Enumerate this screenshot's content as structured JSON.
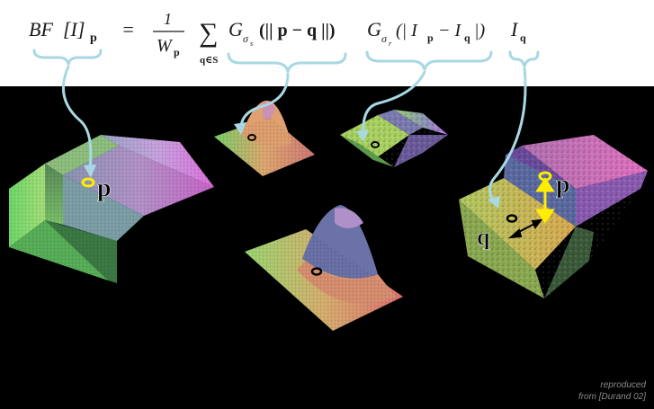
{
  "equation": {
    "lhs_main": "BF",
    "lhs_bracket": "[I]",
    "lhs_sub": "p",
    "equals": "=",
    "frac_num": "1",
    "frac_den": "W",
    "frac_den_sub": "p",
    "sum_symbol": "∑",
    "sum_sub": "q∈S",
    "spatial_kernel": "G",
    "spatial_sigma": "σ",
    "spatial_sigma_sub": "s",
    "spatial_arg": "(|| p − q ||)",
    "range_kernel": "G",
    "range_sigma": "σ",
    "range_sigma_sub": "r",
    "range_arg": "(| I",
    "range_arg_sub1": "p",
    "range_arg_mid": "− I",
    "range_arg_sub2": "q",
    "range_arg_close": "|)",
    "intensity": "I",
    "intensity_sub": "q"
  },
  "labels": {
    "result_p": "p",
    "input_p": "p",
    "input_q": "q"
  },
  "credit": {
    "line1": "reproduced",
    "line2": "from [Durand 02]"
  },
  "colors": {
    "background_panel": "#000000",
    "brace": "#a8d8e4",
    "marker_ring": "#ffee00",
    "arrow": "#ffee00"
  }
}
